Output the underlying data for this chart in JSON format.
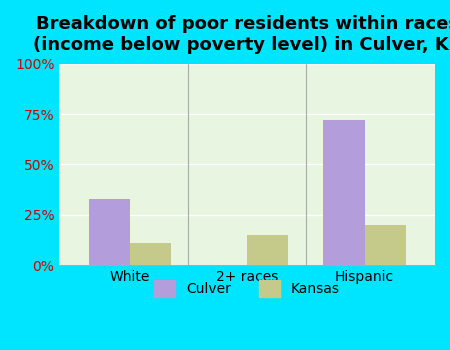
{
  "title": "Breakdown of poor residents within races\n(income below poverty level) in Culver, KS",
  "categories": [
    "White",
    "2+ races",
    "Hispanic"
  ],
  "culver_values": [
    33,
    0,
    72
  ],
  "kansas_values": [
    11,
    15,
    20
  ],
  "culver_color": "#b39ddb",
  "kansas_color": "#c5c98a",
  "bg_color": "#e8f5e0",
  "outer_bg": "#00e5ff",
  "ylim": [
    0,
    100
  ],
  "yticks": [
    0,
    25,
    50,
    75,
    100
  ],
  "ytick_labels": [
    "0%",
    "25%",
    "50%",
    "75%",
    "100%"
  ],
  "bar_width": 0.35,
  "legend_labels": [
    "Culver",
    "Kansas"
  ],
  "title_fontsize": 13,
  "tick_fontsize": 10
}
